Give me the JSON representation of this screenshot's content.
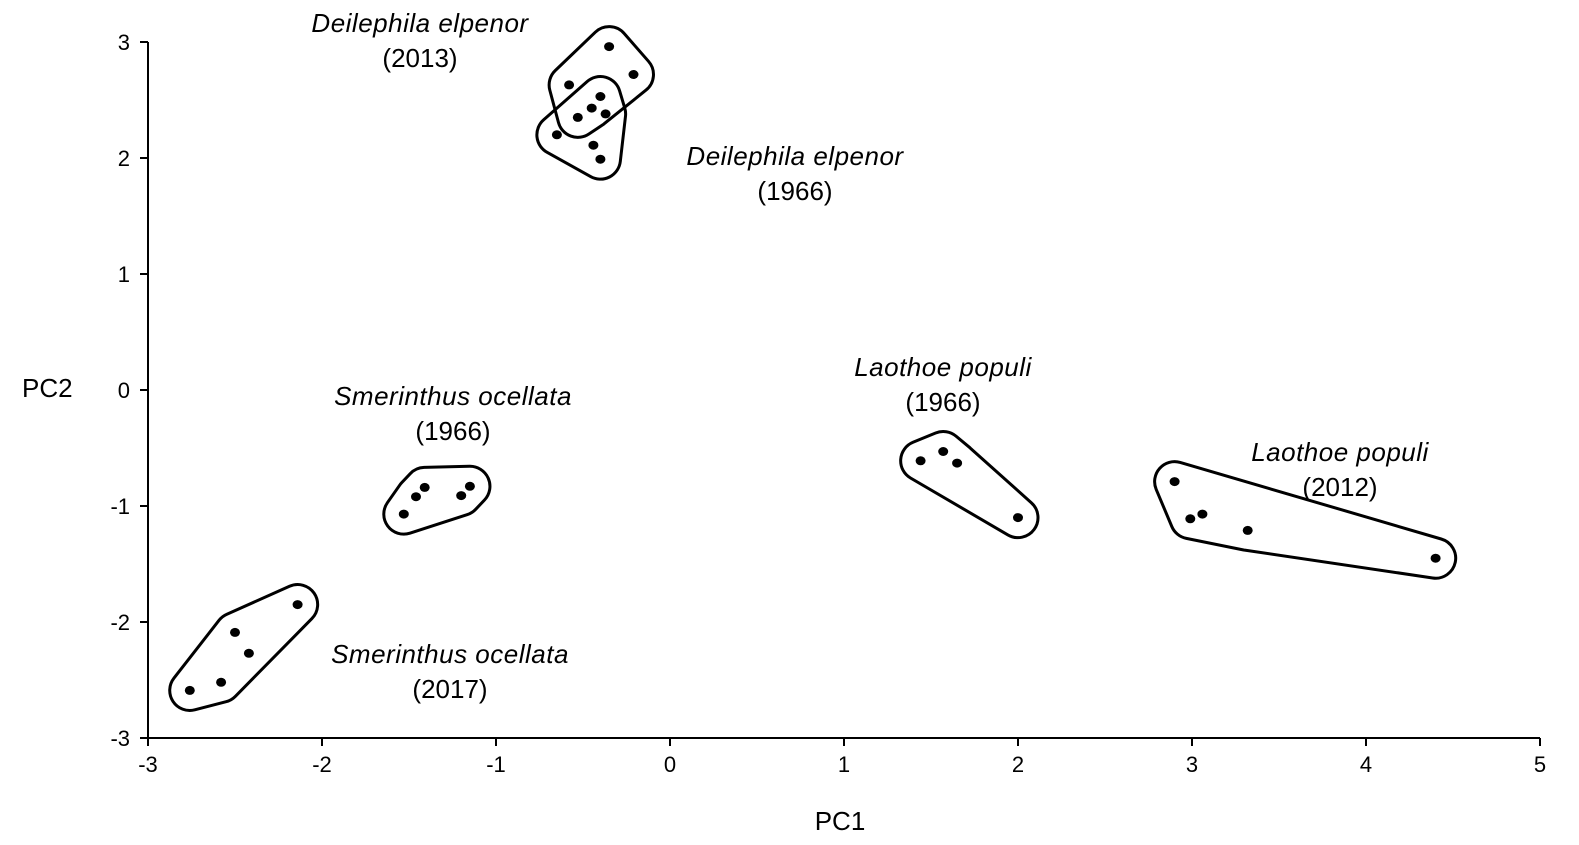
{
  "chart_data": {
    "type": "scatter",
    "title": "",
    "xlabel": "PC1",
    "ylabel": "PC2",
    "xlim": [
      -3,
      5
    ],
    "ylim": [
      -3,
      3
    ],
    "xticks": [
      -3,
      -2,
      -1,
      0,
      1,
      2,
      3,
      4,
      5
    ],
    "yticks": [
      -3,
      -2,
      -1,
      0,
      1,
      2,
      3
    ],
    "grid": false,
    "legend": "none",
    "marker_color": "#000000",
    "series": [
      {
        "species": "Deilephila elpenor",
        "year": "(2013)",
        "points": [
          [
            -0.58,
            2.63
          ],
          [
            -0.35,
            2.96
          ],
          [
            -0.21,
            2.72
          ],
          [
            -0.45,
            2.43
          ],
          [
            -0.53,
            2.35
          ]
        ]
      },
      {
        "species": "Deilephila elpenor",
        "year": "(1966)",
        "points": [
          [
            -0.65,
            2.2
          ],
          [
            -0.4,
            2.53
          ],
          [
            -0.37,
            2.38
          ],
          [
            -0.44,
            2.11
          ],
          [
            -0.4,
            1.99
          ]
        ]
      },
      {
        "species": "Smerinthus ocellata",
        "year": "(1966)",
        "points": [
          [
            -1.53,
            -1.07
          ],
          [
            -1.46,
            -0.92
          ],
          [
            -1.41,
            -0.84
          ],
          [
            -1.2,
            -0.91
          ],
          [
            -1.15,
            -0.83
          ]
        ]
      },
      {
        "species": "Smerinthus ocellata",
        "year": "(2017)",
        "points": [
          [
            -2.76,
            -2.59
          ],
          [
            -2.58,
            -2.52
          ],
          [
            -2.5,
            -2.09
          ],
          [
            -2.42,
            -2.27
          ],
          [
            -2.14,
            -1.85
          ]
        ]
      },
      {
        "species": "Laothoe populi",
        "year": "(1966)",
        "points": [
          [
            1.44,
            -0.61
          ],
          [
            1.57,
            -0.53
          ],
          [
            1.65,
            -0.63
          ],
          [
            2.0,
            -1.1
          ]
        ]
      },
      {
        "species": "Laothoe populi",
        "year": "(2012)",
        "points": [
          [
            2.9,
            -0.79
          ],
          [
            2.99,
            -1.11
          ],
          [
            3.06,
            -1.07
          ],
          [
            3.32,
            -1.21
          ],
          [
            4.4,
            -1.45
          ]
        ]
      }
    ]
  }
}
